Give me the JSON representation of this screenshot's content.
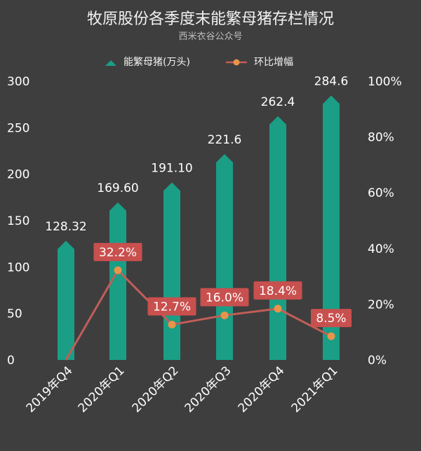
{
  "chart_data": {
    "type": "bar",
    "title": "牧原股份各季度末能繁母猪存栏情况",
    "subtitle": "西米衣谷公众号",
    "categories": [
      "2019年Q4",
      "2020年Q1",
      "2020年Q2",
      "2020年Q3",
      "2020年Q4",
      "2021年Q1"
    ],
    "series": [
      {
        "name": "能繁母猪(万头)",
        "kind": "bar",
        "axis": "left",
        "values": [
          128.32,
          169.6,
          191.1,
          221.6,
          262.4,
          284.6
        ],
        "labels": [
          "128.32",
          "169.60",
          "191.10",
          "221.6",
          "262.4",
          "284.6"
        ]
      },
      {
        "name": "环比增幅",
        "kind": "line",
        "axis": "right",
        "values": [
          0,
          32.2,
          12.7,
          16.0,
          18.4,
          8.5
        ],
        "labels": [
          "",
          "32.2%",
          "12.7%",
          "16.0%",
          "18.4%",
          "8.5%"
        ]
      }
    ],
    "y_left": {
      "range": [
        0,
        300
      ],
      "ticks": [
        "0",
        "50",
        "100",
        "150",
        "200",
        "250",
        "300"
      ]
    },
    "y_right": {
      "range": [
        0,
        100
      ],
      "ticks": [
        "0%",
        "20%",
        "40%",
        "60%",
        "80%",
        "100%"
      ]
    },
    "grid": false,
    "legend_position": "top"
  },
  "colors": {
    "background": "#3e3e3e",
    "bar": "#1a9e86",
    "line": "#c05e58",
    "marker": "#e8944a",
    "label_box": "#c8504e",
    "text": "#ffffff",
    "subtitle": "#bdbdbd"
  }
}
